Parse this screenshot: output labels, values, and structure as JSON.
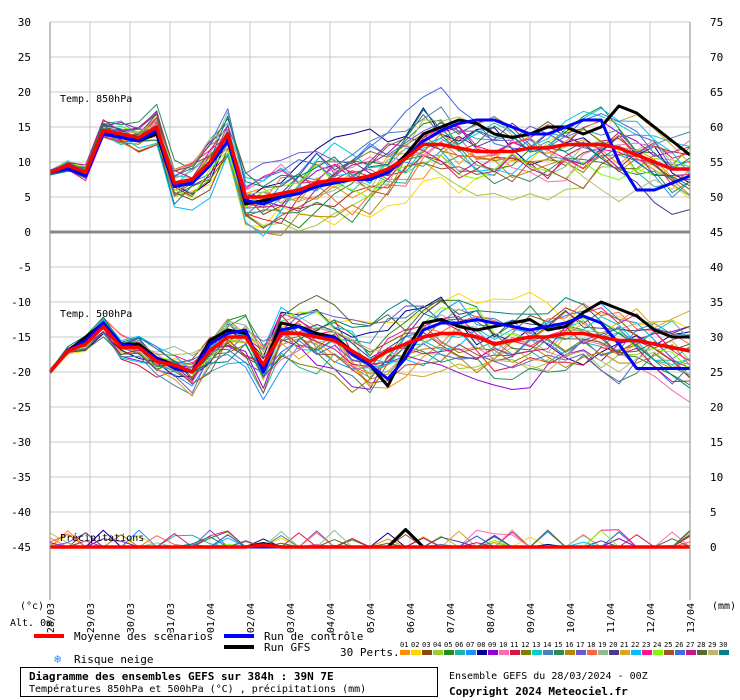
{
  "chart_data": {
    "type": "line",
    "left_axis_ticks": [
      "30",
      "25",
      "20",
      "15",
      "10",
      "5",
      "0",
      "-5",
      "-10",
      "-15",
      "-20",
      "-25",
      "-30",
      "-35",
      "-40",
      "-45"
    ],
    "right_axis_ticks": [
      "75",
      "70",
      "65",
      "60",
      "55",
      "50",
      "45",
      "40",
      "35",
      "30",
      "25",
      "20",
      "15",
      "10",
      "5",
      "0"
    ],
    "left_unit": "(°c)",
    "right_unit": "(mm)",
    "alt_label": "Alt. 0m",
    "dates": [
      "28/03",
      "29/03",
      "30/03",
      "31/03",
      "01/04",
      "02/04",
      "03/04",
      "04/04",
      "05/04",
      "06/04",
      "07/04",
      "08/04",
      "09/04",
      "10/04",
      "11/04",
      "12/04",
      "13/04"
    ],
    "panels": [
      {
        "label": "Temp. 850hPa"
      },
      {
        "label": "Temp. 500hPa"
      },
      {
        "label": "Précipitations"
      }
    ],
    "series": [
      {
        "name": "Moyenne des scénarios",
        "color": "#ff0000",
        "t850": [
          8.5,
          9.5,
          8.5,
          14.5,
          14,
          13.5,
          15,
          7,
          7.5,
          10,
          14,
          5,
          5,
          5.5,
          6,
          7,
          7.5,
          7.5,
          8,
          9,
          10.5,
          12.5,
          12.5,
          12,
          11.5,
          11.5,
          11.5,
          12,
          12,
          12.5,
          12.5,
          12.5,
          12,
          11,
          10,
          9,
          9
        ],
        "t500": [
          -20,
          -17,
          -16,
          -13.5,
          -16.5,
          -16.5,
          -18.5,
          -19,
          -20,
          -17,
          -15,
          -15,
          -19,
          -14.5,
          -14.5,
          -15,
          -15.5,
          -17,
          -18.5,
          -17,
          -16,
          -15,
          -14.5,
          -14.5,
          -15,
          -16,
          -15.5,
          -15,
          -15,
          -14.5,
          -14.5,
          -15,
          -15.5,
          -15.5,
          -16,
          -16.5,
          -17
        ],
        "precip": [
          0,
          0,
          0,
          0,
          0,
          0,
          0,
          0,
          0,
          0,
          0,
          0,
          0.3,
          0,
          0,
          0,
          0,
          0,
          0,
          0,
          0,
          0,
          0,
          0,
          0,
          0,
          0,
          0,
          0,
          0,
          0,
          0,
          0,
          0,
          0,
          0,
          0
        ]
      },
      {
        "name": "Run de contrôle",
        "color": "#0000ff",
        "t850": [
          8.5,
          9,
          8,
          14,
          13.5,
          13,
          14.5,
          6.5,
          7,
          9.5,
          13,
          4.5,
          4,
          5,
          5.5,
          6.5,
          7,
          7.5,
          7.5,
          8.5,
          10.5,
          13,
          14.5,
          15.5,
          16,
          16,
          15,
          14,
          14,
          15,
          16,
          16,
          10,
          6,
          6,
          7,
          8
        ],
        "t500": [
          -20,
          -17,
          -15.5,
          -13,
          -16,
          -16.5,
          -18,
          -19.5,
          -20,
          -16,
          -14.5,
          -14,
          -20,
          -14,
          -13.5,
          -15,
          -15,
          -17.5,
          -19,
          -21,
          -18,
          -14,
          -13,
          -13,
          -12.5,
          -13,
          -13.5,
          -14,
          -13.5,
          -13,
          -12,
          -13,
          -16,
          -19.5,
          -19.5,
          -19.5,
          -19.5
        ],
        "precip": [
          0,
          0,
          0,
          0,
          0,
          0,
          0,
          0,
          0,
          0,
          0,
          0,
          0,
          0,
          0,
          0,
          0,
          0,
          0,
          0,
          0,
          0,
          0,
          0,
          0,
          0,
          0,
          0,
          0,
          0,
          0,
          0,
          0,
          0,
          0,
          0,
          0
        ]
      },
      {
        "name": "Run GFS",
        "color": "#000000",
        "t850": [
          8.5,
          9.5,
          8,
          14.5,
          13.5,
          13,
          14,
          6.5,
          7,
          10,
          14,
          4,
          4.5,
          5,
          5.5,
          6.5,
          7,
          7.5,
          7.5,
          8.5,
          11,
          14,
          15,
          16,
          15.5,
          14,
          13.5,
          14,
          15,
          15,
          14,
          15,
          18,
          17,
          15,
          13,
          11
        ],
        "t500": [
          -20,
          -17,
          -15,
          -13,
          -16,
          -16,
          -18,
          -19,
          -20,
          -15.5,
          -14,
          -14.5,
          -19.5,
          -13,
          -13.5,
          -14.5,
          -15,
          -17,
          -19,
          -22,
          -17,
          -13,
          -12.5,
          -13.5,
          -14,
          -13.5,
          -13,
          -12.5,
          -14,
          -13.5,
          -11.5,
          -10,
          -11,
          -12,
          -14,
          -15,
          -15
        ],
        "precip": [
          0,
          0,
          0,
          0,
          0,
          0,
          0,
          0,
          0,
          0,
          0,
          0,
          0.5,
          0,
          0,
          0,
          0,
          0,
          0,
          0,
          2.5,
          0,
          0,
          0,
          0,
          0,
          0,
          0,
          0,
          0,
          0,
          0,
          0,
          0,
          0,
          0,
          0
        ]
      }
    ]
  },
  "legend": {
    "mean_label": "Moyenne des scénarios",
    "control_label": "Run de contrôle",
    "gfs_label": "Run GFS",
    "snow_label": "Risque neige",
    "perts_label": "30 Perts.",
    "pert_numbers": [
      "01",
      "02",
      "03",
      "04",
      "05",
      "06",
      "07",
      "08",
      "09",
      "10",
      "11",
      "12",
      "13",
      "14",
      "15",
      "16",
      "17",
      "18",
      "19",
      "20",
      "21",
      "22",
      "23",
      "24",
      "25",
      "26",
      "27",
      "28",
      "29",
      "30"
    ],
    "pert_colors": [
      "#ff8c00",
      "#ffd700",
      "#8b4513",
      "#9acd32",
      "#228b22",
      "#20b2aa",
      "#1e90ff",
      "#00008b",
      "#9400d3",
      "#ff69b4",
      "#dc143c",
      "#808000",
      "#00ced1",
      "#4682b4",
      "#2e8b57",
      "#b8860b",
      "#6a5acd",
      "#ff6347",
      "#8fbc8f",
      "#483d8b",
      "#daa520",
      "#00bfff",
      "#ff1493",
      "#7cfc00",
      "#a0522d",
      "#4169e1",
      "#c71585",
      "#556b2f",
      "#bdb76b",
      "#008080"
    ]
  },
  "footer": {
    "title": "Diagramme des ensembles GEFS sur 384h : 39N 7E",
    "subtitle": "Températures 850hPa et 500hPa (°C) , précipitations (mm)",
    "run_info": "Ensemble GEFS du 28/03/2024 - 00Z",
    "copyright": "Copyright 2024 Meteociel.fr"
  }
}
